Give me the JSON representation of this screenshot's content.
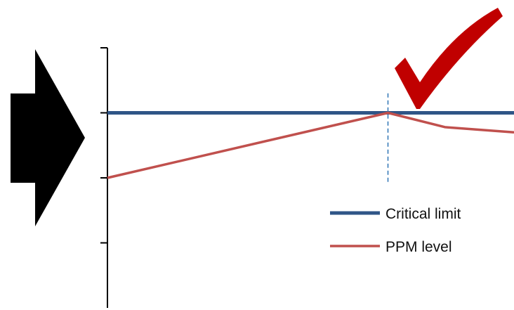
{
  "icons": {
    "arrow": "right-arrow-icon",
    "check": "checkmark-icon"
  },
  "colors": {
    "critical_limit": "#2f5587",
    "ppm_level": "#c0504d",
    "arrow": "#000000",
    "check": "#c00000",
    "guide": "#2e74b5",
    "axis": "#000000"
  },
  "chart_data": {
    "type": "line",
    "ylim": [
      0,
      4
    ],
    "yticks": [
      1,
      2,
      3,
      4
    ],
    "xlim": [
      0,
      10
    ],
    "grid": false,
    "legend": {
      "placement": "bottom-right",
      "entries": [
        "Critical limit",
        "PPM level"
      ]
    },
    "series": [
      {
        "name": "Critical limit",
        "x": [
          0,
          10
        ],
        "y": [
          3,
          3
        ]
      },
      {
        "name": "PPM level",
        "x": [
          0,
          6.9,
          8.3,
          10
        ],
        "y": [
          2,
          3,
          2.78,
          2.7
        ]
      }
    ],
    "annotations": [
      {
        "type": "vertical-dashed-line",
        "x": 6.9,
        "y_range": [
          1.9,
          3.3
        ]
      }
    ]
  }
}
